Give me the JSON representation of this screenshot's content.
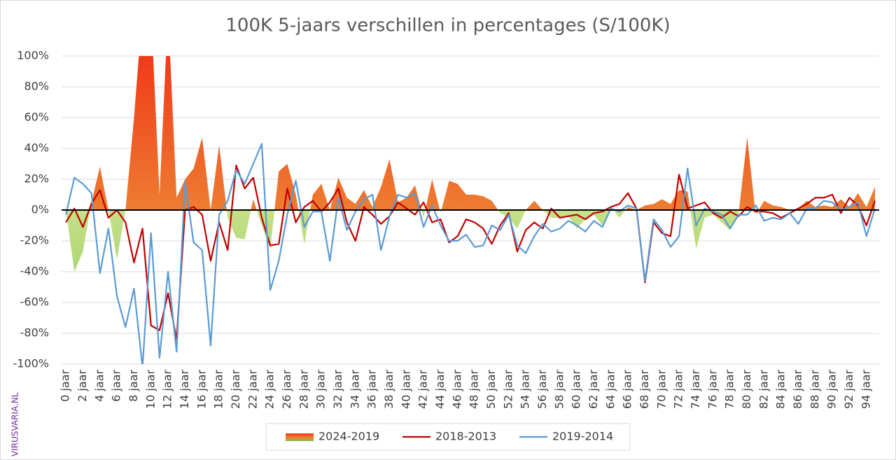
{
  "chart_data": {
    "type": "area-line",
    "title": "100K 5-jaars verschillen in percentages (S/100K)",
    "credit": "VIRUSVARIA.NL",
    "categories": [
      "0 jaar",
      null,
      "2 jaar",
      null,
      "4 jaar",
      null,
      "6 jaar",
      null,
      "8 jaar",
      null,
      "10 jaar",
      null,
      "12 jaar",
      null,
      "14 jaar",
      null,
      "16 jaar",
      null,
      "18 jaar",
      null,
      "20 jaar",
      null,
      "22 jaar",
      null,
      "24 jaar",
      null,
      "26 jaar",
      null,
      "28 jaar",
      null,
      "30 jaar",
      null,
      "32 jaar",
      null,
      "34 jaar",
      null,
      "36 jaar",
      null,
      "38 jaar",
      null,
      "40 jaar",
      null,
      "42 jaar",
      null,
      "44 jaar",
      null,
      "46 jaar",
      null,
      "48 jaar",
      null,
      "50 jaar",
      null,
      "52 jaar",
      null,
      "54 jaar",
      null,
      "56 jaar",
      null,
      "58 jaar",
      null,
      "60 jaar",
      null,
      "62 jaar",
      null,
      "64 jaar",
      null,
      "66 jaar",
      null,
      "68 jaar",
      null,
      "70 jaar",
      null,
      "72 jaar",
      null,
      "74 jaar",
      null,
      "76 jaar",
      null,
      "78 jaar",
      null,
      "80 jaar",
      null,
      "82 jaar",
      null,
      "84 jaar",
      null,
      "86 jaar",
      null,
      "88 jaar",
      null,
      "90 jaar",
      null,
      "92 jaar",
      null,
      "94 jaar",
      null
    ],
    "series": [
      {
        "name": "2024-2019",
        "kind": "area",
        "color": "#ed7d31",
        "negative_color": "#8cc84b",
        "values": [
          0,
          -40,
          -27,
          5,
          28,
          0,
          -32,
          0,
          60,
          130,
          130,
          10,
          130,
          8,
          20,
          27,
          47,
          0,
          42,
          -5,
          -18,
          -19,
          7,
          -10,
          -25,
          25,
          30,
          10,
          -22,
          10,
          17,
          0,
          21,
          8,
          4,
          13,
          2,
          15,
          33,
          5,
          8,
          16,
          -5,
          20,
          -2,
          19,
          17,
          10,
          10,
          9,
          6,
          -2,
          -5,
          -12,
          0,
          6,
          0,
          -5,
          -5,
          -4,
          -12,
          -6,
          -3,
          -10,
          2,
          -5,
          2,
          0,
          3,
          4,
          7,
          4,
          13,
          12,
          -25,
          -5,
          -3,
          -8,
          -13,
          -2,
          47,
          -3,
          6,
          3,
          2,
          0,
          1,
          6,
          2,
          3,
          2,
          7,
          2,
          11,
          2,
          15
        ]
      },
      {
        "name": "2018-2013",
        "kind": "line",
        "color": "#c00000",
        "values": [
          -8,
          1,
          -11,
          4,
          13,
          -5,
          0,
          -8,
          -34,
          -12,
          -75,
          -78,
          -54,
          -84,
          0,
          2,
          -3,
          -33,
          -8,
          -26,
          29,
          14,
          21,
          -5,
          -23,
          -22,
          14,
          -8,
          2,
          6,
          -1,
          5,
          14,
          -8,
          -20,
          2,
          -3,
          -9,
          -4,
          5,
          1,
          -3,
          5,
          -8,
          -6,
          -21,
          -17,
          -6,
          -8,
          -12,
          -22,
          -10,
          -2,
          -27,
          -13,
          -8,
          -12,
          1,
          -5,
          -4,
          -3,
          -6,
          -2,
          -1,
          2,
          4,
          11,
          1,
          -47,
          -8,
          -15,
          -17,
          23,
          1,
          3,
          5,
          -2,
          -5,
          -1,
          -4,
          2,
          -1,
          -1,
          -2,
          -5,
          -2,
          1,
          4,
          8,
          8,
          10,
          -2,
          8,
          3,
          -10,
          6
        ]
      },
      {
        "name": "2019-2014",
        "kind": "line",
        "color": "#5b9bd5",
        "values": [
          -3,
          21,
          17,
          11,
          -41,
          -12,
          -56,
          -76,
          -51,
          -102,
          -15,
          -96,
          -40,
          -92,
          18,
          -21,
          -26,
          -88,
          -3,
          6,
          26,
          17,
          30,
          43,
          -52,
          -33,
          -3,
          19,
          -11,
          -1,
          -1,
          -33,
          8,
          -13,
          -1,
          7,
          10,
          -26,
          -4,
          10,
          8,
          11,
          -11,
          3,
          -10,
          -20,
          -20,
          -16,
          -24,
          -23,
          -10,
          -13,
          -3,
          -23,
          -28,
          -17,
          -9,
          -14,
          -12,
          -7,
          -10,
          -14,
          -7,
          -11,
          1,
          -1,
          3,
          1,
          -46,
          -6,
          -13,
          -24,
          -17,
          27,
          -10,
          1,
          -1,
          -3,
          -12,
          -3,
          -3,
          3,
          -7,
          -5,
          -6,
          -2,
          -9,
          1,
          1,
          6,
          5,
          0,
          2,
          5,
          -17,
          1
        ]
      }
    ],
    "ylim": [
      -100,
      100
    ],
    "yticks": [
      {
        "value": -100,
        "label": "-100%"
      },
      {
        "value": -80,
        "label": "-80%"
      },
      {
        "value": -60,
        "label": "-60%"
      },
      {
        "value": -40,
        "label": "-40%"
      },
      {
        "value": -20,
        "label": "-20%"
      },
      {
        "value": 0,
        "label": "0%"
      },
      {
        "value": 20,
        "label": "20%"
      },
      {
        "value": 40,
        "label": "40%"
      },
      {
        "value": 60,
        "label": "60%"
      },
      {
        "value": 80,
        "label": "80%"
      },
      {
        "value": 100,
        "label": "100%"
      }
    ],
    "grid": true
  }
}
